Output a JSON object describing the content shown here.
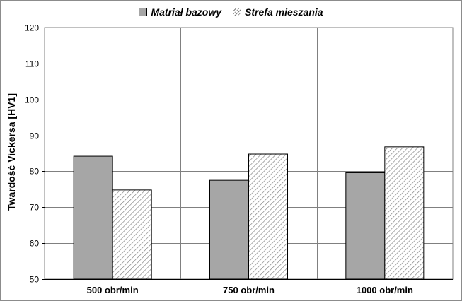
{
  "chart_data": {
    "type": "bar",
    "categories": [
      "500 obr/min",
      "750 obr/min",
      "1000 obr/min"
    ],
    "series": [
      {
        "name": "Matriał bazowy",
        "values": [
          84.2,
          77.5,
          79.6
        ],
        "color": "#a6a6a6",
        "pattern": "solid"
      },
      {
        "name": "Strefa mieszania",
        "values": [
          74.8,
          84.8,
          86.8
        ],
        "color": "#ffffff",
        "pattern": "diagonal-hatch"
      }
    ],
    "ylabel": "Twardość Vickersa [HV1]",
    "ylim": [
      50,
      120
    ],
    "yticks": [
      50,
      60,
      70,
      80,
      90,
      100,
      110,
      120
    ],
    "grid": true,
    "legend_position": "top"
  }
}
